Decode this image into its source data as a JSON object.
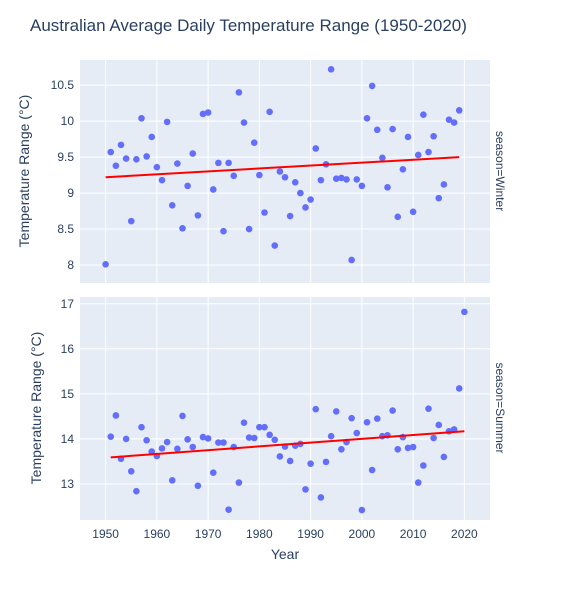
{
  "chart_data": {
    "type": "scatter",
    "title": "Australian Average Daily Temperature Range (1950-2020)",
    "xlabel": "Year",
    "ylabel": "Temperature Range (°C)",
    "xlim": [
      1945,
      2025
    ],
    "xticks": [
      1950,
      1960,
      1970,
      1980,
      1990,
      2000,
      2010,
      2020
    ],
    "grid": true,
    "colors": {
      "background": "#e5ecf6",
      "grid": "#ffffff",
      "marker": "#636efa",
      "trend": "#ff0000",
      "text": "#2a3f5f"
    },
    "facets": [
      {
        "label": "season=Winter",
        "ylim": [
          7.75,
          10.85
        ],
        "yticks": [
          8,
          8.5,
          9,
          9.5,
          10,
          10.5
        ],
        "trend": {
          "x": [
            1950,
            2019
          ],
          "y": [
            9.22,
            9.5
          ]
        },
        "x": [
          1950,
          1951,
          1952,
          1953,
          1954,
          1955,
          1956,
          1957,
          1958,
          1959,
          1960,
          1961,
          1962,
          1963,
          1964,
          1965,
          1966,
          1967,
          1968,
          1969,
          1970,
          1971,
          1972,
          1973,
          1974,
          1975,
          1976,
          1977,
          1978,
          1979,
          1980,
          1981,
          1982,
          1983,
          1984,
          1985,
          1986,
          1987,
          1988,
          1989,
          1990,
          1991,
          1992,
          1993,
          1994,
          1995,
          1996,
          1997,
          1998,
          1999,
          2000,
          2001,
          2002,
          2003,
          2004,
          2005,
          2006,
          2007,
          2008,
          2009,
          2010,
          2011,
          2012,
          2013,
          2014,
          2015,
          2016,
          2017,
          2018,
          2019
        ],
        "y": [
          8.01,
          9.57,
          9.38,
          9.67,
          9.48,
          8.61,
          9.47,
          10.04,
          9.51,
          9.78,
          9.36,
          9.18,
          9.99,
          8.83,
          9.41,
          8.51,
          9.1,
          9.55,
          8.69,
          10.1,
          10.12,
          9.05,
          9.42,
          8.47,
          9.42,
          9.24,
          10.4,
          9.98,
          8.5,
          9.7,
          9.25,
          8.73,
          10.13,
          8.27,
          9.3,
          9.22,
          8.68,
          9.15,
          9.0,
          8.8,
          8.91,
          9.62,
          9.18,
          9.4,
          10.72,
          9.2,
          9.21,
          9.19,
          8.07,
          9.19,
          9.1,
          10.04,
          10.49,
          9.88,
          9.49,
          9.08,
          9.89,
          8.67,
          9.33,
          9.78,
          8.74,
          9.53,
          10.09,
          9.57,
          9.79,
          8.93,
          9.12,
          10.02,
          9.98,
          10.15
        ]
      },
      {
        "label": "season=Summer",
        "ylim": [
          12.2,
          17.15
        ],
        "yticks": [
          13,
          14,
          15,
          16,
          17
        ],
        "trend": {
          "x": [
            1951,
            2020
          ],
          "y": [
            13.59,
            14.17
          ]
        },
        "x": [
          1951,
          1952,
          1953,
          1954,
          1955,
          1956,
          1957,
          1958,
          1959,
          1960,
          1961,
          1962,
          1963,
          1964,
          1965,
          1966,
          1967,
          1968,
          1969,
          1970,
          1971,
          1972,
          1973,
          1974,
          1975,
          1976,
          1977,
          1978,
          1979,
          1980,
          1981,
          1982,
          1983,
          1984,
          1985,
          1986,
          1987,
          1988,
          1989,
          1990,
          1991,
          1992,
          1993,
          1994,
          1995,
          1996,
          1997,
          1998,
          1999,
          2000,
          2001,
          2002,
          2003,
          2004,
          2005,
          2006,
          2007,
          2008,
          2009,
          2010,
          2011,
          2012,
          2013,
          2014,
          2015,
          2016,
          2017,
          2018,
          2019,
          2020
        ],
        "y": [
          14.05,
          14.52,
          13.56,
          14.0,
          13.28,
          12.84,
          14.26,
          13.97,
          13.72,
          13.62,
          13.79,
          13.93,
          13.08,
          13.78,
          14.51,
          13.99,
          13.82,
          12.96,
          14.04,
          14.01,
          13.25,
          13.92,
          13.92,
          12.43,
          13.82,
          13.03,
          14.36,
          14.03,
          14.02,
          14.26,
          14.26,
          14.09,
          13.98,
          13.61,
          13.83,
          13.51,
          13.85,
          13.89,
          12.88,
          13.45,
          14.66,
          12.7,
          13.49,
          14.06,
          14.61,
          13.77,
          13.93,
          14.46,
          14.13,
          12.42,
          14.37,
          13.31,
          14.45,
          14.06,
          14.08,
          14.63,
          13.77,
          14.04,
          13.8,
          13.82,
          13.03,
          13.41,
          14.67,
          14.02,
          14.31,
          13.6,
          14.17,
          14.21,
          15.12,
          16.82
        ]
      }
    ]
  }
}
